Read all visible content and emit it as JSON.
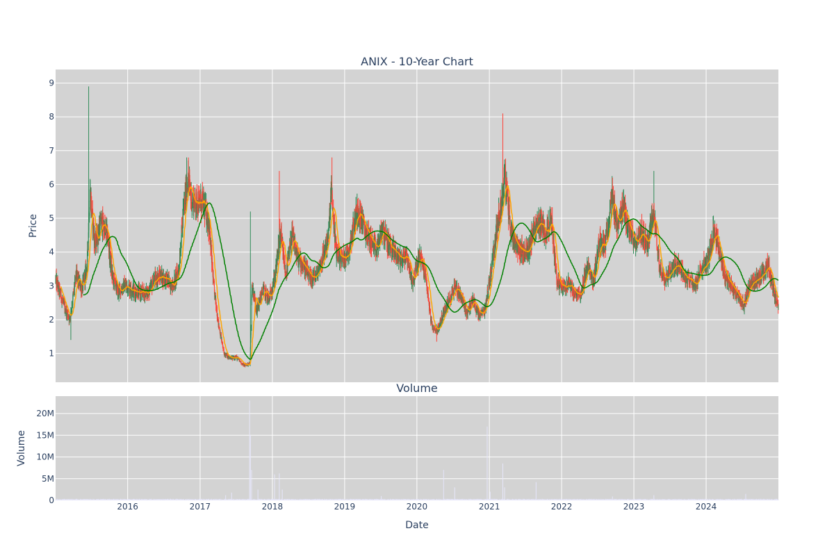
{
  "chart_data": {
    "type": "candlestick",
    "title": "ANIX - 10-Year Chart",
    "colors": {
      "background": "#d3d3d3",
      "grid": "#ffffff",
      "increasing": "#2e8b57",
      "decreasing": "#ff4136",
      "ma_short": "#ffa500",
      "ma_long": "#008000",
      "volume": "#e6e6fa"
    },
    "price_panel": {
      "ylabel": "Price",
      "ylim": [
        0.15,
        9.4
      ],
      "yticks": [
        1,
        2,
        3,
        4,
        5,
        6,
        7,
        8,
        9
      ],
      "ytick_labels": [
        "1",
        "2",
        "3",
        "4",
        "5",
        "6",
        "7",
        "8",
        "9"
      ],
      "grid": true,
      "series": [
        {
          "type": "candlestick"
        },
        {
          "type": "line",
          "color": "#ffa500"
        },
        {
          "type": "line",
          "color": "#008000"
        }
      ]
    },
    "volume_panel": {
      "title": "Volume",
      "ylabel": "Volume",
      "xlabel": "Date",
      "ylim": [
        0,
        24000000
      ],
      "yticks": [
        0,
        5000000,
        10000000,
        15000000,
        20000000
      ],
      "ytick_labels": [
        "0",
        "5M",
        "10M",
        "15M",
        "20M"
      ],
      "grid": true
    },
    "xaxis": {
      "range": [
        "2015-01-02",
        "2024-12-31"
      ],
      "ticks": [
        "2016-01-01",
        "2017-01-01",
        "2018-01-01",
        "2019-01-01",
        "2020-01-01",
        "2021-01-01",
        "2022-01-01",
        "2023-01-01",
        "2024-01-01"
      ],
      "tick_labels": [
        "2016",
        "2017",
        "2018",
        "2019",
        "2020",
        "2021",
        "2022",
        "2023",
        "2024"
      ]
    },
    "price_path": [
      [
        "2015-01-02",
        3.2
      ],
      [
        "2015-02-15",
        2.4
      ],
      [
        "2015-03-15",
        2.0
      ],
      [
        "2015-04-15",
        3.3
      ],
      [
        "2015-05-15",
        2.9
      ],
      [
        "2015-06-10",
        3.6
      ],
      [
        "2015-06-25",
        5.8
      ],
      [
        "2015-07-20",
        4.2
      ],
      [
        "2015-08-20",
        4.9
      ],
      [
        "2015-09-20",
        4.5
      ],
      [
        "2015-10-15",
        3.3
      ],
      [
        "2015-11-15",
        2.8
      ],
      [
        "2015-12-15",
        3.0
      ],
      [
        "2016-01-20",
        2.9
      ],
      [
        "2016-03-01",
        2.8
      ],
      [
        "2016-04-15",
        2.8
      ],
      [
        "2016-05-15",
        3.2
      ],
      [
        "2016-06-15",
        3.3
      ],
      [
        "2016-07-15",
        3.2
      ],
      [
        "2016-08-15",
        3.0
      ],
      [
        "2016-09-15",
        3.5
      ],
      [
        "2016-10-10",
        5.3
      ],
      [
        "2016-11-01",
        6.2
      ],
      [
        "2016-11-20",
        5.5
      ],
      [
        "2016-12-15",
        5.5
      ],
      [
        "2017-01-20",
        5.4
      ],
      [
        "2017-02-15",
        4.8
      ],
      [
        "2017-03-10",
        3.0
      ],
      [
        "2017-04-01",
        2.0
      ],
      [
        "2017-05-01",
        1.0
      ],
      [
        "2017-06-01",
        0.85
      ],
      [
        "2017-07-01",
        0.9
      ],
      [
        "2017-08-10",
        0.65
      ],
      [
        "2017-09-10",
        0.7
      ],
      [
        "2017-09-20",
        3.0
      ],
      [
        "2017-10-15",
        2.3
      ],
      [
        "2017-11-15",
        2.9
      ],
      [
        "2017-12-15",
        2.6
      ],
      [
        "2018-01-15",
        3.3
      ],
      [
        "2018-02-10",
        4.6
      ],
      [
        "2018-03-10",
        3.3
      ],
      [
        "2018-04-10",
        4.5
      ],
      [
        "2018-05-10",
        3.8
      ],
      [
        "2018-06-10",
        3.6
      ],
      [
        "2018-07-10",
        3.2
      ],
      [
        "2018-08-10",
        3.3
      ],
      [
        "2018-09-10",
        3.8
      ],
      [
        "2018-10-10",
        4.4
      ],
      [
        "2018-10-25",
        5.8
      ],
      [
        "2018-11-20",
        4.0
      ],
      [
        "2018-12-20",
        3.8
      ],
      [
        "2019-01-20",
        4.0
      ],
      [
        "2019-02-15",
        4.8
      ],
      [
        "2019-03-10",
        5.3
      ],
      [
        "2019-04-10",
        4.7
      ],
      [
        "2019-05-10",
        4.4
      ],
      [
        "2019-06-10",
        4.0
      ],
      [
        "2019-07-10",
        4.7
      ],
      [
        "2019-08-10",
        4.2
      ],
      [
        "2019-09-10",
        4.0
      ],
      [
        "2019-10-10",
        3.8
      ],
      [
        "2019-11-10",
        3.9
      ],
      [
        "2019-12-10",
        3.1
      ],
      [
        "2020-01-15",
        3.9
      ],
      [
        "2020-02-15",
        3.3
      ],
      [
        "2020-03-15",
        1.8
      ],
      [
        "2020-04-15",
        1.7
      ],
      [
        "2020-05-15",
        2.2
      ],
      [
        "2020-06-15",
        2.6
      ],
      [
        "2020-07-10",
        3.0
      ],
      [
        "2020-08-10",
        2.7
      ],
      [
        "2020-09-10",
        2.2
      ],
      [
        "2020-10-10",
        2.6
      ],
      [
        "2020-11-10",
        2.1
      ],
      [
        "2020-12-10",
        2.3
      ],
      [
        "2021-01-10",
        3.5
      ],
      [
        "2021-02-10",
        4.8
      ],
      [
        "2021-03-05",
        5.5
      ],
      [
        "2021-03-20",
        6.3
      ],
      [
        "2021-04-20",
        4.6
      ],
      [
        "2021-05-20",
        4.2
      ],
      [
        "2021-06-20",
        4.0
      ],
      [
        "2021-07-20",
        4.1
      ],
      [
        "2021-08-10",
        4.6
      ],
      [
        "2021-09-10",
        4.9
      ],
      [
        "2021-10-10",
        4.6
      ],
      [
        "2021-11-10",
        4.9
      ],
      [
        "2021-12-10",
        3.1
      ],
      [
        "2022-01-10",
        3.0
      ],
      [
        "2022-02-10",
        3.1
      ],
      [
        "2022-03-10",
        2.7
      ],
      [
        "2022-04-10",
        2.8
      ],
      [
        "2022-05-10",
        3.6
      ],
      [
        "2022-06-10",
        3.1
      ],
      [
        "2022-07-10",
        4.3
      ],
      [
        "2022-08-10",
        4.2
      ],
      [
        "2022-09-10",
        5.7
      ],
      [
        "2022-10-10",
        4.7
      ],
      [
        "2022-11-10",
        5.3
      ],
      [
        "2022-12-10",
        4.6
      ],
      [
        "2023-01-10",
        4.3
      ],
      [
        "2023-02-10",
        4.6
      ],
      [
        "2023-03-10",
        4.2
      ],
      [
        "2023-04-10",
        5.2
      ],
      [
        "2023-05-10",
        3.6
      ],
      [
        "2023-06-10",
        3.2
      ],
      [
        "2023-07-10",
        3.5
      ],
      [
        "2023-08-10",
        3.7
      ],
      [
        "2023-09-10",
        3.3
      ],
      [
        "2023-10-10",
        3.2
      ],
      [
        "2023-11-10",
        3.0
      ],
      [
        "2023-12-10",
        3.6
      ],
      [
        "2024-01-10",
        3.7
      ],
      [
        "2024-02-10",
        4.7
      ],
      [
        "2024-03-10",
        4.0
      ],
      [
        "2024-04-10",
        3.2
      ],
      [
        "2024-05-10",
        3.0
      ],
      [
        "2024-06-10",
        2.7
      ],
      [
        "2024-07-10",
        2.4
      ],
      [
        "2024-08-10",
        3.1
      ],
      [
        "2024-09-10",
        3.2
      ],
      [
        "2024-10-10",
        3.3
      ],
      [
        "2024-11-10",
        3.6
      ],
      [
        "2024-12-01",
        3.0
      ],
      [
        "2024-12-31",
        2.4
      ]
    ],
    "spikes": [
      [
        "2015-06-18",
        8.9,
        "high"
      ],
      [
        "2016-10-25",
        6.8,
        "high"
      ],
      [
        "2017-09-12",
        5.2,
        "high"
      ],
      [
        "2018-02-05",
        6.4,
        "high"
      ],
      [
        "2018-10-28",
        6.8,
        "high"
      ],
      [
        "2021-03-10",
        8.1,
        "high"
      ],
      [
        "2022-09-15",
        6.2,
        "high"
      ],
      [
        "2023-04-12",
        6.4,
        "high"
      ],
      [
        "2020-04-10",
        1.35,
        "low"
      ],
      [
        "2015-03-20",
        1.4,
        "low"
      ]
    ],
    "volume_spikes": [
      [
        "2017-09-08",
        23000000
      ],
      [
        "2017-09-12",
        15000000
      ],
      [
        "2017-09-18",
        7000000
      ],
      [
        "2018-01-12",
        6000000
      ],
      [
        "2018-02-05",
        6200000
      ],
      [
        "2018-02-20",
        2500000
      ],
      [
        "2020-05-15",
        7000000
      ],
      [
        "2020-07-10",
        3000000
      ],
      [
        "2020-12-20",
        17000000
      ],
      [
        "2021-01-05",
        2000000
      ],
      [
        "2021-03-10",
        8500000
      ],
      [
        "2021-03-20",
        3000000
      ],
      [
        "2021-08-25",
        4200000
      ],
      [
        "2017-06-10",
        1800000
      ],
      [
        "2017-05-10",
        1200000
      ],
      [
        "2017-10-20",
        2500000
      ],
      [
        "2019-07-05",
        1000000
      ],
      [
        "2022-09-15",
        900000
      ],
      [
        "2023-04-12",
        1200000
      ],
      [
        "2024-07-20",
        1500000
      ]
    ]
  }
}
